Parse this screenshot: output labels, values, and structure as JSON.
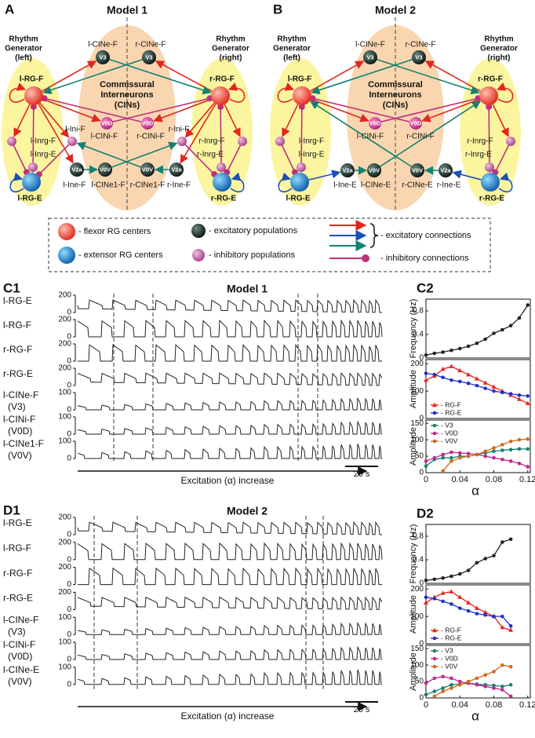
{
  "panels": [
    {
      "letter": "A",
      "title": "Model 1",
      "rg_left": [
        "Rhythm",
        "Generator",
        "(left)"
      ],
      "rg_right": [
        "Rhythm",
        "Generator",
        "(right)"
      ],
      "cin": [
        "Commissural",
        "Interneurons",
        "(CINs)"
      ],
      "nodes": [
        {
          "label": "l-RG-F"
        },
        {
          "label": "r-RG-F"
        },
        {
          "label": "l-CINe-F",
          "text": "V3"
        },
        {
          "label": "r-CINe-F",
          "text": "V3"
        },
        {
          "label": "l-Inrg-F"
        },
        {
          "label": "l-Inrg-E"
        },
        {
          "label": "l-RG-E"
        },
        {
          "label": "r-Inrg-F"
        },
        {
          "label": "r-Inrg-E"
        },
        {
          "label": "r-RG-E"
        },
        {
          "label": "l-Ini-F"
        },
        {
          "label": "r-Ini-F"
        },
        {
          "label": "l-CINi-F",
          "text": "V0D"
        },
        {
          "label": "r-CINi-F",
          "text": "V0D"
        },
        {
          "label": "l-Ine-F",
          "text": "V2a"
        },
        {
          "label": "l-CINe1-F",
          "text": "V0V"
        },
        {
          "label": "r-CINe1-F",
          "text": "V0V"
        },
        {
          "label": "r-Ine-F",
          "text": "V2a"
        }
      ]
    },
    {
      "letter": "B",
      "title": "Model 2",
      "rg_left": [
        "Rhythm",
        "Generator",
        "(left)"
      ],
      "rg_right": [
        "Rhythm",
        "Generator",
        "(right)"
      ],
      "cin": [
        "Commissural",
        "Interneurons",
        "(CINs)"
      ],
      "nodes": [
        {
          "label": "l-RG-F"
        },
        {
          "label": "r-RG-F"
        },
        {
          "label": "l-CINe-F",
          "text": "V3"
        },
        {
          "label": "r-CINe-F",
          "text": "V3"
        },
        {
          "label": "l-Inrg-F"
        },
        {
          "label": "l-Inrg-E"
        },
        {
          "label": "l-RG-E"
        },
        {
          "label": "r-Inrg-F"
        },
        {
          "label": "r-Inrg-E"
        },
        {
          "label": "r-RG-E"
        },
        {
          "label": "l-CINi-F",
          "text": "V0D"
        },
        {
          "label": "r-CINi-F",
          "text": "V0D"
        },
        {
          "label": "l-Ine-E",
          "text": "V2a"
        },
        {
          "label": "l-CINe-E",
          "text": "V0V"
        },
        {
          "label": "r-CINe-E",
          "text": "V0V"
        },
        {
          "label": "r-Ine-E",
          "text": "V2a"
        }
      ]
    }
  ],
  "legend": {
    "flexor": "- flexor RG centers",
    "extensor": "- extensor RG centers",
    "excitatory_pops": "- excitatory populations",
    "inhibitory_pops": "- inhibitory populations",
    "excitatory_conn": "- excitatory connections",
    "inhibitory_conn": "- inhibitory connections"
  },
  "traces": [
    {
      "letter": "C1",
      "title": "Model 1",
      "xlabel": "Excitation (α) increase",
      "scale": "20 s",
      "rows": [
        {
          "label": "l-RG-E",
          "ylim": [
            0,
            200
          ],
          "yticks": [
            0,
            200
          ]
        },
        {
          "label": "l-RG-F",
          "ylim": [
            0,
            200
          ],
          "yticks": [
            0,
            200
          ]
        },
        {
          "label": "r-RG-F",
          "ylim": [
            0,
            200
          ],
          "yticks": [
            0,
            200
          ]
        },
        {
          "label": "r-RG-E",
          "ylim": [
            0,
            200
          ],
          "yticks": [
            0,
            200
          ]
        },
        {
          "label": "l-CINe-F",
          "sublabel": "(V3)",
          "ylim": [
            0,
            100
          ],
          "yticks": [
            0,
            100
          ]
        },
        {
          "label": "l-CINi-F",
          "sublabel": "(V0D)",
          "ylim": [
            0,
            100
          ],
          "yticks": [
            0,
            100
          ]
        },
        {
          "label": "l-CINe1-F",
          "sublabel": "(V0V)",
          "ylim": [
            0,
            100
          ],
          "yticks": [
            0,
            100
          ]
        }
      ]
    },
    {
      "letter": "D1",
      "title": "Model 2",
      "xlabel": "Excitation (α) increase",
      "scale": "20 s",
      "rows": [
        {
          "label": "l-RG-E",
          "ylim": [
            0,
            200
          ],
          "yticks": [
            0,
            200
          ]
        },
        {
          "label": "l-RG-F",
          "ylim": [
            0,
            200
          ],
          "yticks": [
            0,
            200
          ]
        },
        {
          "label": "r-RG-F",
          "ylim": [
            0,
            200
          ],
          "yticks": [
            0,
            200
          ]
        },
        {
          "label": "r-RG-E",
          "ylim": [
            0,
            200
          ],
          "yticks": [
            0,
            200
          ]
        },
        {
          "label": "l-CINe-F",
          "sublabel": "(V3)",
          "ylim": [
            0,
            100
          ],
          "yticks": [
            0,
            100
          ]
        },
        {
          "label": "l-CINi-F",
          "sublabel": "(V0D)",
          "ylim": [
            0,
            100
          ],
          "yticks": [
            0,
            100
          ]
        },
        {
          "label": "l-CINe-E",
          "sublabel": "(V0V)",
          "ylim": [
            0,
            100
          ],
          "yticks": [
            0,
            100
          ]
        }
      ]
    }
  ],
  "chart_data": [
    {
      "type": "line",
      "panel": "C2",
      "ylabel": "Frequency (Hz)",
      "x": [
        0,
        0.01,
        0.02,
        0.03,
        0.04,
        0.05,
        0.06,
        0.07,
        0.08,
        0.09,
        0.1,
        0.11,
        0.12
      ],
      "values": [
        0.05,
        0.08,
        0.1,
        0.13,
        0.16,
        0.2,
        0.25,
        0.32,
        0.42,
        0.48,
        0.55,
        0.68,
        0.9
      ],
      "color": "#222222",
      "xlim": [
        0,
        0.123
      ],
      "ylim": [
        0,
        1
      ],
      "yticks": [
        0,
        0.4,
        0.8
      ]
    },
    {
      "type": "line",
      "ylabel": "Amplitude",
      "x": [
        0,
        0.01,
        0.02,
        0.03,
        0.04,
        0.05,
        0.06,
        0.07,
        0.08,
        0.09,
        0.1,
        0.11,
        0.12
      ],
      "series": [
        {
          "name": "- RG-F",
          "color": "#e8231c",
          "marker": "triangle",
          "values": [
            140,
            155,
            180,
            190,
            175,
            160,
            145,
            130,
            115,
            100,
            85,
            70,
            55
          ]
        },
        {
          "name": "- RG-E",
          "color": "#1f2fcf",
          "marker": "circle",
          "values": [
            165,
            160,
            150,
            140,
            135,
            128,
            120,
            110,
            100,
            95,
            90,
            85,
            82
          ]
        }
      ],
      "xlim": [
        0,
        0.123
      ],
      "ylim": [
        0,
        215
      ],
      "yticks": [
        0,
        100,
        200
      ],
      "legend": "lower left"
    },
    {
      "type": "line",
      "ylabel": "Amplitude",
      "xlabel": "α",
      "x": [
        0,
        0.01,
        0.02,
        0.03,
        0.04,
        0.05,
        0.06,
        0.07,
        0.08,
        0.09,
        0.1,
        0.11,
        0.12
      ],
      "series": [
        {
          "name": "- V3",
          "color": "#16806e",
          "marker": "circle",
          "values": [
            20,
            40,
            45,
            45,
            50,
            50,
            55,
            60,
            65,
            68,
            70,
            72,
            72
          ]
        },
        {
          "name": "- V0D",
          "color": "#c0288f",
          "marker": "circle",
          "values": [
            35,
            45,
            55,
            62,
            60,
            58,
            55,
            50,
            45,
            40,
            35,
            28,
            18
          ]
        },
        {
          "name": "- V0V",
          "color": "#d2691e",
          "marker": "circle",
          "values": [
            null,
            null,
            5,
            35,
            45,
            50,
            55,
            65,
            75,
            85,
            95,
            100,
            102
          ]
        }
      ],
      "xlim": [
        0,
        0.123
      ],
      "ylim": [
        0,
        160
      ],
      "yticks": [
        0,
        50,
        100,
        150
      ],
      "xticks": [
        0,
        0.04,
        0.08,
        0.12
      ],
      "legend": "upper left"
    },
    {
      "type": "line",
      "panel": "D2",
      "ylabel": "Frequency (Hz)",
      "x": [
        0,
        0.01,
        0.02,
        0.03,
        0.04,
        0.05,
        0.06,
        0.07,
        0.08,
        0.09,
        0.1
      ],
      "values": [
        0.05,
        0.07,
        0.09,
        0.12,
        0.16,
        0.22,
        0.35,
        0.42,
        0.47,
        0.7,
        0.75
      ],
      "color": "#222222",
      "xlim": [
        0,
        0.123
      ],
      "ylim": [
        0,
        1
      ],
      "yticks": [
        0,
        0.4,
        0.8
      ]
    },
    {
      "type": "line",
      "ylabel": "Amplitude",
      "x": [
        0,
        0.01,
        0.02,
        0.03,
        0.04,
        0.05,
        0.06,
        0.07,
        0.08,
        0.09,
        0.1
      ],
      "series": [
        {
          "name": "- RG-F",
          "color": "#e8231c",
          "marker": "triangle",
          "values": [
            150,
            170,
            185,
            190,
            170,
            150,
            130,
            115,
            100,
            60,
            50
          ]
        },
        {
          "name": "- RG-E",
          "color": "#1f2fcf",
          "marker": "circle",
          "values": [
            170,
            165,
            155,
            145,
            130,
            120,
            110,
            105,
            100,
            100,
            65
          ]
        }
      ],
      "xlim": [
        0,
        0.123
      ],
      "ylim": [
        0,
        215
      ],
      "yticks": [
        0,
        100,
        200
      ],
      "legend": "lower left"
    },
    {
      "type": "line",
      "ylabel": "Amplitude",
      "xlabel": "α",
      "x": [
        0,
        0.01,
        0.02,
        0.03,
        0.04,
        0.05,
        0.06,
        0.07,
        0.08,
        0.09,
        0.1
      ],
      "series": [
        {
          "name": "- V3",
          "color": "#16806e",
          "marker": "circle",
          "values": [
            10,
            20,
            30,
            40,
            42,
            45,
            42,
            40,
            38,
            35,
            40
          ]
        },
        {
          "name": "- V0D",
          "color": "#c0288f",
          "marker": "circle",
          "values": [
            45,
            60,
            65,
            60,
            50,
            45,
            40,
            35,
            30,
            25,
            5
          ]
        },
        {
          "name": "- V0V",
          "color": "#d2691e",
          "marker": "circle",
          "values": [
            null,
            5,
            20,
            30,
            40,
            50,
            60,
            70,
            80,
            100,
            95
          ]
        }
      ],
      "xlim": [
        0,
        0.123
      ],
      "ylim": [
        0,
        160
      ],
      "yticks": [
        0,
        50,
        100,
        150
      ],
      "xticks": [
        0,
        0.04,
        0.08,
        0.12
      ],
      "legend": "upper left"
    }
  ]
}
